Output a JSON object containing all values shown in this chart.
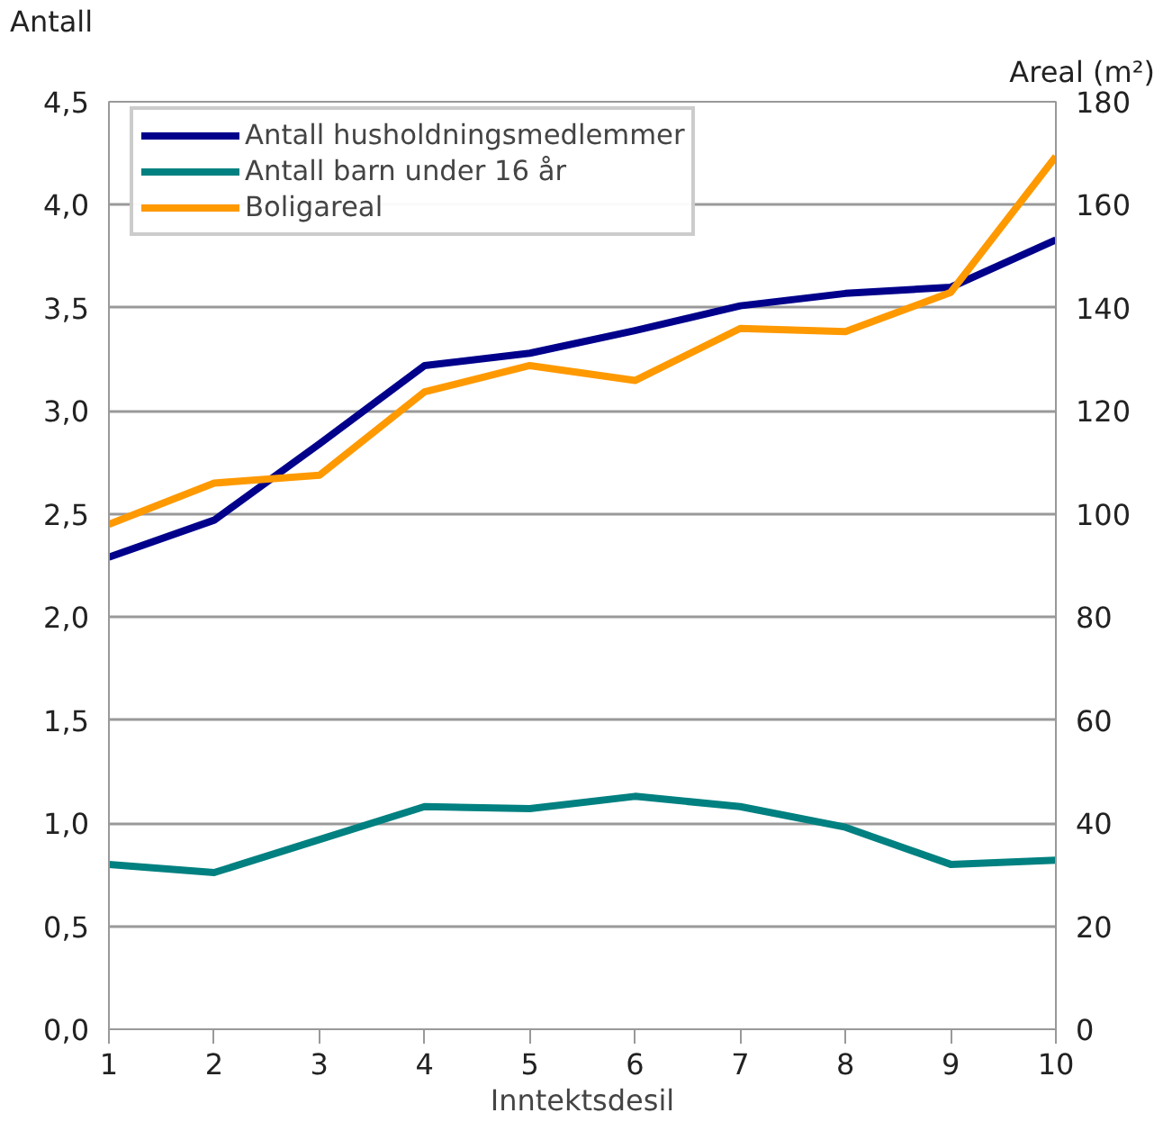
{
  "chart_data": {
    "type": "line",
    "ylabel": "Antall",
    "y2label": "Areal (m²)",
    "xlabel": "Inntektsdesil",
    "x": [
      1,
      2,
      3,
      4,
      5,
      6,
      7,
      8,
      9,
      10
    ],
    "xlim": [
      1,
      10
    ],
    "xticks": [
      1,
      2,
      3,
      4,
      5,
      6,
      7,
      8,
      9,
      10
    ],
    "ylim": [
      0,
      4.5
    ],
    "yticks": [
      {
        "value": 0,
        "label": "0,0"
      },
      {
        "value": 0.5,
        "label": "0,5"
      },
      {
        "value": 1,
        "label": "1,0"
      },
      {
        "value": 1.5,
        "label": "1,5"
      },
      {
        "value": 2,
        "label": "2,0"
      },
      {
        "value": 2.5,
        "label": "2,5"
      },
      {
        "value": 3,
        "label": "3,0"
      },
      {
        "value": 3.5,
        "label": "3,5"
      },
      {
        "value": 4,
        "label": "4,0"
      },
      {
        "value": 4.5,
        "label": "4,5"
      }
    ],
    "y2lim": [
      0,
      180
    ],
    "y2ticks": [
      0,
      20,
      40,
      60,
      80,
      100,
      120,
      140,
      160,
      180
    ],
    "grid": "y",
    "legend": "top left",
    "series": [
      {
        "name": "Antall husholdningsmedlemmer",
        "color": "#00008b",
        "values": [
          2.29,
          2.47,
          2.84,
          3.22,
          3.28,
          3.39,
          3.51,
          3.57,
          3.6,
          3.83
        ]
      },
      {
        "name": "Antall barn under 16 år",
        "color": "#008080",
        "values": [
          0.8,
          0.76,
          0.92,
          1.08,
          1.07,
          1.13,
          1.08,
          0.98,
          0.8,
          0.82
        ]
      },
      {
        "name": "Boligareal",
        "color": "#ff9900",
        "axis": "y2",
        "values": [
          98,
          106,
          107.5,
          123.7,
          128.8,
          125.9,
          136,
          135.4,
          143,
          169.4
        ]
      }
    ]
  }
}
